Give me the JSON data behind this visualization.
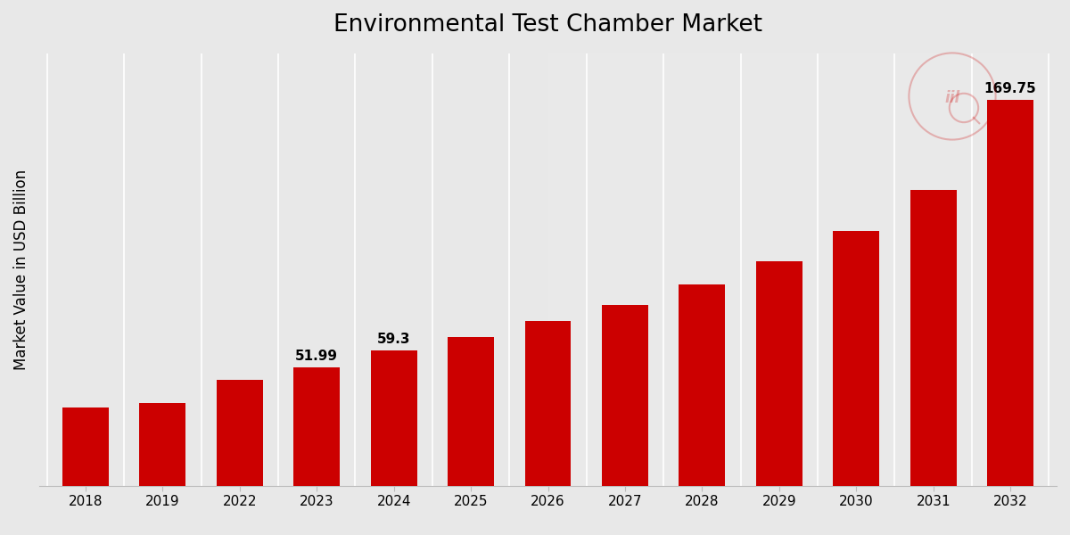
{
  "categories": [
    "2018",
    "2019",
    "2022",
    "2023",
    "2024",
    "2025",
    "2026",
    "2027",
    "2028",
    "2029",
    "2030",
    "2031",
    "2032"
  ],
  "values": [
    34.5,
    36.2,
    46.5,
    51.99,
    59.3,
    65.5,
    72.5,
    79.5,
    88.5,
    98.5,
    112.0,
    130.0,
    169.75
  ],
  "bar_color": "#cc0000",
  "title": "Environmental Test Chamber Market",
  "ylabel": "Market Value in USD Billion",
  "labeled_indices": [
    3,
    4,
    12
  ],
  "labeled_values": [
    "51.99",
    "59.3",
    "169.75"
  ],
  "title_fontsize": 19,
  "label_fontsize": 11,
  "ylabel_fontsize": 12,
  "tick_fontsize": 11,
  "ylim": [
    0,
    190
  ]
}
